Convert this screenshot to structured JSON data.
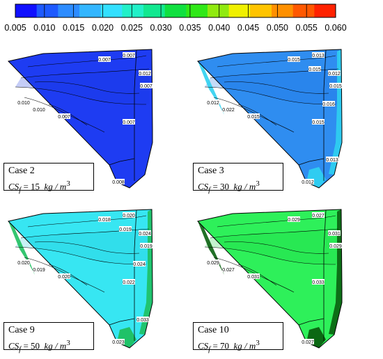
{
  "colorbar": {
    "ticks": [
      "0.005",
      "0.010",
      "0.015",
      "0.020",
      "0.025",
      "0.030",
      "0.035",
      "0.040",
      "0.045",
      "0.050",
      "0.055",
      "0.060"
    ],
    "colors": [
      "#1010ff",
      "#1e5aff",
      "#2d8cff",
      "#33b6ff",
      "#33e0ff",
      "#22f0c8",
      "#12e890",
      "#10e040",
      "#30e818",
      "#90ea10",
      "#f0f000",
      "#ffc400",
      "#ff9000",
      "#ff5800",
      "#ff2200"
    ]
  },
  "panels": [
    {
      "case_label": "Case 2",
      "cs_value": "15",
      "fill": "#1e3cf2",
      "contour_labels": [
        "0.007",
        "0.007",
        "0.012",
        "0.007",
        "0.010",
        "0.010",
        "0.007",
        "0.007",
        "0.008"
      ]
    },
    {
      "case_label": "Case 3",
      "cs_value": "30",
      "fill": "#2f8df0",
      "contour_labels": [
        "0.015",
        "0.013",
        "0.012",
        "0.015",
        "0.012",
        "0.022",
        "0.015",
        "0.015",
        "0.012",
        "0.015",
        "0.016",
        "0.013"
      ]
    },
    {
      "case_label": "Case 9",
      "cs_value": "50",
      "fill": "#37e6f2",
      "contour_labels": [
        "0.018",
        "0.020",
        "0.024",
        "0.019",
        "0.020",
        "0.019",
        "0.020",
        "0.022",
        "0.023",
        "0.019",
        "0.024",
        "0.033"
      ]
    },
    {
      "case_label": "Case 10",
      "cs_value": "70",
      "fill": "#2ef05a",
      "contour_labels": [
        "0.029",
        "0.027",
        "0.031",
        "0.029",
        "0.029",
        "0.027",
        "0.031",
        "0.033",
        "0.027"
      ]
    }
  ],
  "cs_symbol": "CS",
  "cs_subscript": "f",
  "cs_unit": "kg / m",
  "cs_unit_exp": "3"
}
